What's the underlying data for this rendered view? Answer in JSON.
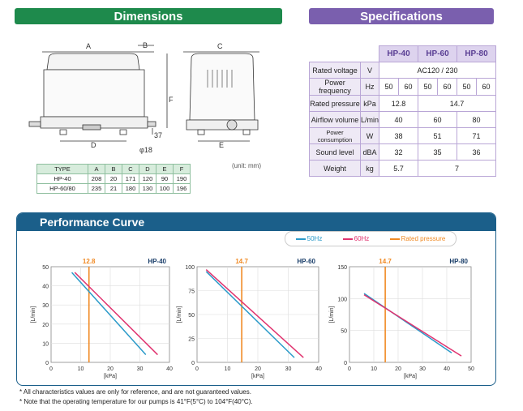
{
  "headers": {
    "dimensions": "Dimensions",
    "specifications": "Specifications",
    "performance": "Performance Curve"
  },
  "drawing": {
    "A": "A",
    "B": "B",
    "C": "C",
    "D": "D",
    "E": "E",
    "F": "F",
    "dim37": "37",
    "phi18": "φ18"
  },
  "type_table": {
    "headers": [
      "TYPE",
      "A",
      "B",
      "C",
      "D",
      "E",
      "F"
    ],
    "rows": [
      [
        "HP-40",
        "208",
        "20",
        "171",
        "120",
        "90",
        "190"
      ],
      [
        "HP-60/80",
        "235",
        "21",
        "180",
        "130",
        "100",
        "196"
      ]
    ]
  },
  "unit_note": "(unit: mm)",
  "spec": {
    "models": [
      "HP-40",
      "HP-60",
      "HP-80"
    ],
    "rows": [
      {
        "label": "Rated voltage",
        "unit": "V"
      },
      {
        "label": "Power frequency",
        "unit": "Hz"
      },
      {
        "label": "Rated pressure",
        "unit": "kPa"
      },
      {
        "label": "Airflow volume",
        "unit": "L/min"
      },
      {
        "label": "Power consumption",
        "unit": "W"
      },
      {
        "label": "Sound level",
        "unit": "dBA"
      },
      {
        "label": "Weight",
        "unit": "kg"
      }
    ],
    "voltage": "AC120 / 230",
    "freq": [
      "50",
      "60",
      "50",
      "60",
      "50",
      "60"
    ],
    "pressure": [
      "12.8",
      "14.7"
    ],
    "airflow": [
      "40",
      "60",
      "80"
    ],
    "power": [
      "38",
      "51",
      "71"
    ],
    "sound": [
      "32",
      "35",
      "36"
    ],
    "weight": [
      "5.7",
      "7"
    ]
  },
  "legend": {
    "s50": "50Hz",
    "s60": "60Hz",
    "rated": "Rated pressure"
  },
  "colors": {
    "s50": "#2a9ac9",
    "s60": "#e0336f",
    "rated": "#f08a24",
    "green": "#1e8a4c",
    "purple": "#7a5fae",
    "navy": "#1b5f8a"
  },
  "chart_data": [
    {
      "type": "line",
      "model": "HP-40",
      "rated_label": "12.8",
      "rated_pressure": 12.8,
      "xlabel": "[kPa]",
      "ylabel": "[L/min]",
      "xlim": [
        0,
        40
      ],
      "ylim": [
        0,
        50
      ],
      "xticks": [
        0,
        10,
        20,
        30,
        40
      ],
      "yticks": [
        0,
        10,
        20,
        30,
        40,
        50
      ],
      "series": [
        {
          "name": "50Hz",
          "x": [
            7,
            32
          ],
          "y": [
            47,
            4
          ]
        },
        {
          "name": "60Hz",
          "x": [
            8,
            36
          ],
          "y": [
            47,
            4
          ]
        }
      ]
    },
    {
      "type": "line",
      "model": "HP-60",
      "rated_label": "14.7",
      "rated_pressure": 14.7,
      "xlabel": "[kPa]",
      "ylabel": "[L/min]",
      "xlim": [
        0,
        40
      ],
      "ylim": [
        0,
        100
      ],
      "xticks": [
        0,
        10,
        20,
        30,
        40
      ],
      "yticks": [
        0,
        25,
        50,
        75,
        100
      ],
      "series": [
        {
          "name": "50Hz",
          "x": [
            3,
            32
          ],
          "y": [
            95,
            5
          ]
        },
        {
          "name": "60Hz",
          "x": [
            3,
            35
          ],
          "y": [
            97,
            5
          ]
        }
      ]
    },
    {
      "type": "line",
      "model": "HP-80",
      "rated_label": "14.7",
      "rated_pressure": 14.7,
      "xlabel": "[kPa]",
      "ylabel": "[L/min]",
      "xlim": [
        0,
        50
      ],
      "ylim": [
        0,
        150
      ],
      "xticks": [
        0,
        10,
        20,
        30,
        40,
        50
      ],
      "yticks": [
        0,
        50,
        100,
        150
      ],
      "series": [
        {
          "name": "50Hz",
          "x": [
            6,
            42
          ],
          "y": [
            108,
            15
          ]
        },
        {
          "name": "60Hz",
          "x": [
            6,
            46
          ],
          "y": [
            106,
            10
          ]
        }
      ]
    }
  ],
  "notes": [
    "* All characteristics values are only for reference, and are not guaranteed values.",
    "* Note that the operating temperature for our pumps is 41°F(5°C) to 104°F(40°C)."
  ]
}
